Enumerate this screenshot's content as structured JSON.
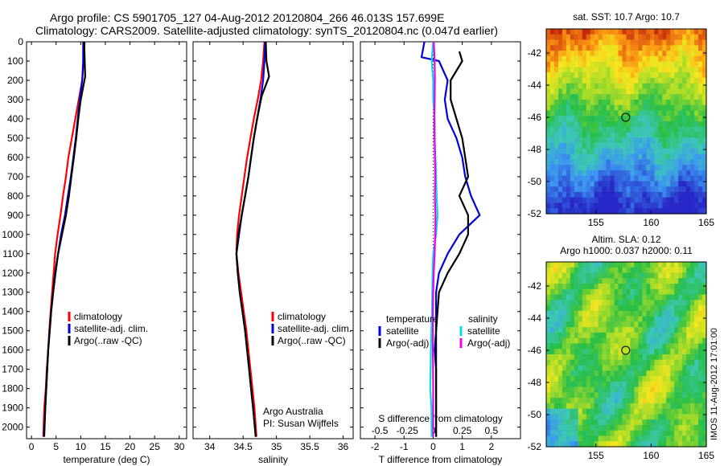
{
  "header": {
    "line1": "Argo profile: CS 5901705_127 04-Aug-2012 20120804_266 46.013S 157.699E",
    "line2": "Climatology: CARS2009. Satellite-adjusted climatology: synTS_20120804.nc (0.047d earlier)"
  },
  "stamp": "IMOS 11-Aug-2012 17:01:00",
  "chart_data": [
    {
      "type": "line",
      "panel": "temperature",
      "xlabel": "temperature (deg C)",
      "ylabel": "",
      "xlim": [
        -1,
        31.5
      ],
      "ylim": [
        2060,
        0
      ],
      "xticks": [
        0,
        5,
        10,
        15,
        20,
        25,
        30
      ],
      "yticks": [
        0,
        100,
        200,
        300,
        400,
        500,
        600,
        700,
        800,
        900,
        1000,
        1100,
        1200,
        1300,
        1400,
        1500,
        1600,
        1700,
        1800,
        1900,
        2000
      ],
      "legend": [
        "climatology",
        "satellite-adj. clim.",
        "Argo(..raw -QC)"
      ],
      "legend_position": "center",
      "series": [
        {
          "name": "climatology",
          "color": "#ff0000",
          "points": [
            [
              10.8,
              0
            ],
            [
              10.6,
              100
            ],
            [
              10.3,
              200
            ],
            [
              9.6,
              300
            ],
            [
              8.9,
              400
            ],
            [
              8.2,
              500
            ],
            [
              7.5,
              600
            ],
            [
              7.0,
              700
            ],
            [
              6.4,
              800
            ],
            [
              5.9,
              900
            ],
            [
              5.3,
              1000
            ],
            [
              4.8,
              1100
            ],
            [
              4.5,
              1200
            ],
            [
              4.2,
              1300
            ],
            [
              3.9,
              1400
            ],
            [
              3.6,
              1500
            ],
            [
              3.4,
              1600
            ],
            [
              3.1,
              1700
            ],
            [
              2.9,
              1800
            ],
            [
              2.6,
              1900
            ],
            [
              2.4,
              2050
            ]
          ]
        },
        {
          "name": "satellite-adj. clim.",
          "color": "#0000dd",
          "points": [
            [
              10.5,
              0
            ],
            [
              10.5,
              100
            ],
            [
              10.3,
              200
            ],
            [
              9.8,
              300
            ],
            [
              9.4,
              400
            ],
            [
              9.0,
              500
            ],
            [
              8.5,
              600
            ],
            [
              8.0,
              700
            ],
            [
              7.4,
              800
            ],
            [
              6.8,
              900
            ],
            [
              6.0,
              1000
            ],
            [
              5.4,
              1100
            ],
            [
              4.9,
              1200
            ],
            [
              4.4,
              1300
            ],
            [
              4.0,
              1400
            ],
            [
              3.7,
              1500
            ],
            [
              3.4,
              1600
            ],
            [
              3.2,
              1700
            ],
            [
              3.0,
              1800
            ],
            [
              2.8,
              1900
            ],
            [
              2.5,
              2050
            ]
          ]
        },
        {
          "name": "Argo(..raw -QC)",
          "color": "#000000",
          "points": [
            [
              10.7,
              0
            ],
            [
              10.8,
              100
            ],
            [
              10.9,
              180
            ],
            [
              10.0,
              300
            ],
            [
              9.5,
              400
            ],
            [
              9.1,
              500
            ],
            [
              8.6,
              600
            ],
            [
              8.1,
              700
            ],
            [
              7.6,
              800
            ],
            [
              7.0,
              900
            ],
            [
              6.2,
              1000
            ],
            [
              5.4,
              1100
            ],
            [
              4.8,
              1200
            ],
            [
              4.4,
              1300
            ],
            [
              4.0,
              1400
            ],
            [
              3.7,
              1500
            ],
            [
              3.4,
              1600
            ],
            [
              3.2,
              1700
            ],
            [
              3.0,
              1800
            ],
            [
              2.8,
              1900
            ],
            [
              2.6,
              2050
            ]
          ]
        }
      ]
    },
    {
      "type": "line",
      "panel": "salinity",
      "xlabel": "salinity",
      "ylabel": "",
      "xlim": [
        33.75,
        36.15
      ],
      "ylim": [
        2060,
        0
      ],
      "xticks": [
        34,
        34.5,
        35,
        35.5,
        36
      ],
      "legend": [
        "climatology",
        "satellite-adj. clim.",
        "Argo(..raw -QC)"
      ],
      "legend_position": "center",
      "annotation": [
        "Argo Australia",
        "PI: Susan Wijffels"
      ],
      "series": [
        {
          "name": "climatology",
          "color": "#ff0000",
          "points": [
            [
              34.82,
              0
            ],
            [
              34.8,
              100
            ],
            [
              34.77,
              200
            ],
            [
              34.72,
              300
            ],
            [
              34.66,
              400
            ],
            [
              34.61,
              500
            ],
            [
              34.56,
              600
            ],
            [
              34.52,
              700
            ],
            [
              34.48,
              800
            ],
            [
              34.44,
              900
            ],
            [
              34.41,
              1000
            ],
            [
              34.4,
              1100
            ],
            [
              34.43,
              1200
            ],
            [
              34.47,
              1300
            ],
            [
              34.51,
              1400
            ],
            [
              34.55,
              1500
            ],
            [
              34.58,
              1600
            ],
            [
              34.61,
              1700
            ],
            [
              34.64,
              1800
            ],
            [
              34.67,
              1900
            ],
            [
              34.7,
              2050
            ]
          ]
        },
        {
          "name": "satellite-adj. clim.",
          "color": "#0000dd",
          "points": [
            [
              34.83,
              0
            ],
            [
              34.82,
              100
            ],
            [
              34.8,
              200
            ],
            [
              34.76,
              300
            ],
            [
              34.71,
              400
            ],
            [
              34.66,
              500
            ],
            [
              34.62,
              600
            ],
            [
              34.58,
              700
            ],
            [
              34.53,
              800
            ],
            [
              34.48,
              900
            ],
            [
              34.44,
              1000
            ],
            [
              34.4,
              1100
            ],
            [
              34.42,
              1200
            ],
            [
              34.45,
              1300
            ],
            [
              34.49,
              1400
            ],
            [
              34.53,
              1500
            ],
            [
              34.56,
              1600
            ],
            [
              34.59,
              1700
            ],
            [
              34.62,
              1800
            ],
            [
              34.65,
              1900
            ],
            [
              34.69,
              2050
            ]
          ]
        },
        {
          "name": "Argo(..raw -QC)",
          "color": "#000000",
          "points": [
            [
              34.84,
              0
            ],
            [
              34.85,
              100
            ],
            [
              34.89,
              180
            ],
            [
              34.78,
              280
            ],
            [
              34.71,
              400
            ],
            [
              34.66,
              500
            ],
            [
              34.62,
              600
            ],
            [
              34.58,
              700
            ],
            [
              34.53,
              800
            ],
            [
              34.48,
              900
            ],
            [
              34.43,
              1000
            ],
            [
              34.4,
              1100
            ],
            [
              34.42,
              1200
            ],
            [
              34.45,
              1300
            ],
            [
              34.49,
              1400
            ],
            [
              34.53,
              1500
            ],
            [
              34.56,
              1600
            ],
            [
              34.59,
              1700
            ],
            [
              34.62,
              1800
            ],
            [
              34.65,
              1900
            ],
            [
              34.69,
              2050
            ]
          ]
        }
      ]
    },
    {
      "type": "line",
      "panel": "difference",
      "xlabel": "T difference from climatology",
      "xlabel_top": "S difference from climatology",
      "xlim": [
        -2.5,
        3
      ],
      "ylim": [
        2060,
        0
      ],
      "xticks": [
        -2,
        -1,
        0,
        1,
        2
      ],
      "xticks_s": [
        "-0.5",
        "-0.25",
        "0",
        "0.25",
        "0.5"
      ],
      "legend_headers": [
        "temperature",
        "salinity"
      ],
      "legend": [
        "satellite",
        "Argo(-adj)",
        "satellite",
        "Argo(-adj)"
      ],
      "legend_position": "center",
      "series": [
        {
          "name": "temperature satellite",
          "color": "#0000dd",
          "points": [
            [
              -0.3,
              0
            ],
            [
              -0.4,
              80
            ],
            [
              0.2,
              100
            ],
            [
              0.5,
              200
            ],
            [
              0.4,
              300
            ],
            [
              0.5,
              400
            ],
            [
              0.8,
              500
            ],
            [
              1.0,
              600
            ],
            [
              1.1,
              700
            ],
            [
              1.3,
              800
            ],
            [
              1.6,
              900
            ],
            [
              0.9,
              1000
            ],
            [
              0.5,
              1100
            ],
            [
              0.2,
              1200
            ],
            [
              0.1,
              1300
            ],
            [
              0.1,
              1400
            ],
            [
              0.1,
              1500
            ],
            [
              0.05,
              1600
            ],
            [
              0.1,
              1700
            ],
            [
              0.1,
              1800
            ],
            [
              0.1,
              1900
            ],
            [
              0.1,
              2050
            ]
          ]
        },
        {
          "name": "temperature Argo(-adj)",
          "color": "#000000",
          "points": [
            [
              0.9,
              50
            ],
            [
              1.0,
              100
            ],
            [
              0.6,
              200
            ],
            [
              0.6,
              300
            ],
            [
              1.0,
              500
            ],
            [
              1.1,
              600
            ],
            [
              1.2,
              700
            ],
            [
              0.9,
              800
            ],
            [
              1.2,
              900
            ],
            [
              1.2,
              1000
            ],
            [
              0.9,
              1100
            ],
            [
              0.5,
              1200
            ],
            [
              0.2,
              1300
            ],
            [
              0.15,
              1400
            ],
            [
              0.1,
              1500
            ],
            [
              0.1,
              1600
            ],
            [
              0.1,
              1700
            ],
            [
              0.1,
              1800
            ],
            [
              0.1,
              1900
            ],
            [
              0.1,
              2050
            ]
          ]
        },
        {
          "name": "salinity satellite",
          "color": "#00dddd",
          "points": [
            [
              0.0,
              0
            ],
            [
              -0.05,
              100
            ],
            [
              0.0,
              200
            ],
            [
              0.0,
              300
            ],
            [
              0.05,
              400
            ],
            [
              0.05,
              500
            ],
            [
              0.08,
              600
            ],
            [
              0.1,
              700
            ],
            [
              0.12,
              800
            ],
            [
              0.15,
              900
            ],
            [
              0.1,
              1000
            ],
            [
              0.0,
              1100
            ],
            [
              -0.02,
              1200
            ],
            [
              -0.04,
              1400
            ],
            [
              -0.08,
              1600
            ],
            [
              -0.1,
              1800
            ],
            [
              -0.06,
              1900
            ],
            [
              -0.05,
              2050
            ]
          ]
        },
        {
          "name": "salinity Argo(-adj)",
          "color": "#ee00ee",
          "points": [
            [
              0.02,
              0
            ],
            [
              0.05,
              100
            ],
            [
              0.06,
              200
            ],
            [
              0.05,
              300
            ],
            [
              0.04,
              400
            ],
            [
              0.05,
              500
            ],
            [
              0.06,
              600
            ],
            [
              0.07,
              700
            ],
            [
              0.06,
              800
            ],
            [
              0.08,
              900
            ],
            [
              0.07,
              1000
            ],
            [
              0.05,
              1100
            ],
            [
              0.02,
              1200
            ],
            [
              0.0,
              1300
            ],
            [
              -0.01,
              1400
            ],
            [
              -0.01,
              1600
            ],
            [
              0.0,
              1800
            ],
            [
              0.0,
              2050
            ]
          ]
        }
      ]
    },
    {
      "type": "heatmap",
      "panel": "sst_map",
      "title": "sat. SST: 10.7  Argo: 10.7",
      "xlim": [
        150.5,
        165
      ],
      "ylim": [
        -52,
        -40.5
      ],
      "xticks": [
        155,
        160,
        165
      ],
      "yticks": [
        -42,
        -44,
        -46,
        -48,
        -50,
        -52
      ],
      "marker": {
        "lon": 157.7,
        "lat": -46.0
      }
    },
    {
      "type": "heatmap",
      "panel": "sla_map",
      "title": "Altim. SLA: 0.12",
      "subtitle": "Argo h1000: 0.037 h2000: 0.11",
      "xlim": [
        150.5,
        165
      ],
      "ylim": [
        -52,
        -40.5
      ],
      "xticks": [
        155,
        160,
        165
      ],
      "yticks": [
        -42,
        -44,
        -46,
        -48,
        -50,
        -52
      ],
      "marker": {
        "lon": 157.7,
        "lat": -46.0
      }
    }
  ]
}
